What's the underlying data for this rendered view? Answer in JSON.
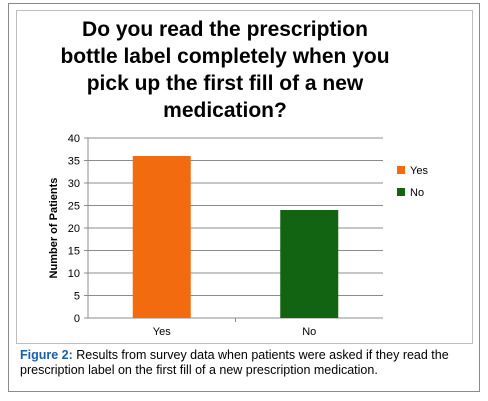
{
  "chart_data": {
    "type": "bar",
    "title": "Do you read the prescription bottle label completely when you pick up the first fill of a new medication?",
    "ylabel": "Number of Patients",
    "xlabel": "",
    "categories": [
      "Yes",
      "No"
    ],
    "values": [
      36,
      24
    ],
    "colors": [
      "#f26b0f",
      "#126312"
    ],
    "ylim": [
      0,
      40
    ],
    "yticks": [
      0,
      5,
      10,
      15,
      20,
      25,
      30,
      35,
      40
    ],
    "grid": true,
    "legend": {
      "placement": "right",
      "entries": [
        {
          "label": "Yes",
          "color": "#f26b0f"
        },
        {
          "label": "No",
          "color": "#126312"
        }
      ]
    }
  },
  "caption": {
    "label": "Figure 2:",
    "text": " Results from survey data when patients were asked if they read the prescription label on the first fill of a new prescription medication."
  }
}
